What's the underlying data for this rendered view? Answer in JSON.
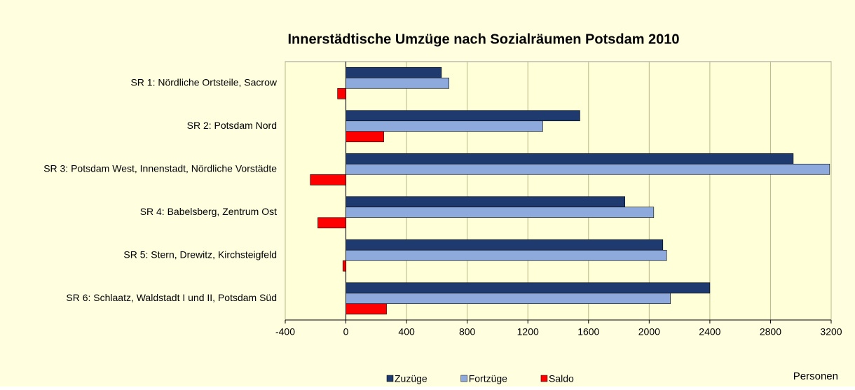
{
  "chart_data": {
    "type": "hbar",
    "title": "Innerstädtische Umzüge nach Sozialräumen Potsdam 2010",
    "x_label": "Personen",
    "categories": [
      "SR 1: Nördliche Ortsteile, Sacrow",
      "SR 2: Potsdam Nord",
      "SR 3: Potsdam West, Innenstadt, Nördliche Vorstädte",
      "SR 4: Babelsberg, Zentrum Ost",
      "SR 5: Stern, Drewitz, Kirchsteigfeld",
      "SR 6: Schlaatz, Waldstadt I und II, Potsdam Süd"
    ],
    "series": [
      {
        "name": "Zuzüge",
        "color": "#1f3a6e",
        "values": [
          630,
          1543,
          2950,
          1840,
          2090,
          2400
        ]
      },
      {
        "name": "Fortzüge",
        "color": "#8eaadc",
        "values": [
          680,
          1298,
          3190,
          2030,
          2115,
          2140
        ]
      },
      {
        "name": "Saldo",
        "color": "#ff0000",
        "values": [
          -55,
          250,
          -235,
          -185,
          -20,
          268
        ]
      }
    ],
    "xlim": [
      -400,
      3200
    ],
    "xticks": [
      -400,
      0,
      400,
      800,
      1200,
      1600,
      2000,
      2400,
      2800,
      3200
    ],
    "grid": true,
    "legend": "bottom"
  }
}
